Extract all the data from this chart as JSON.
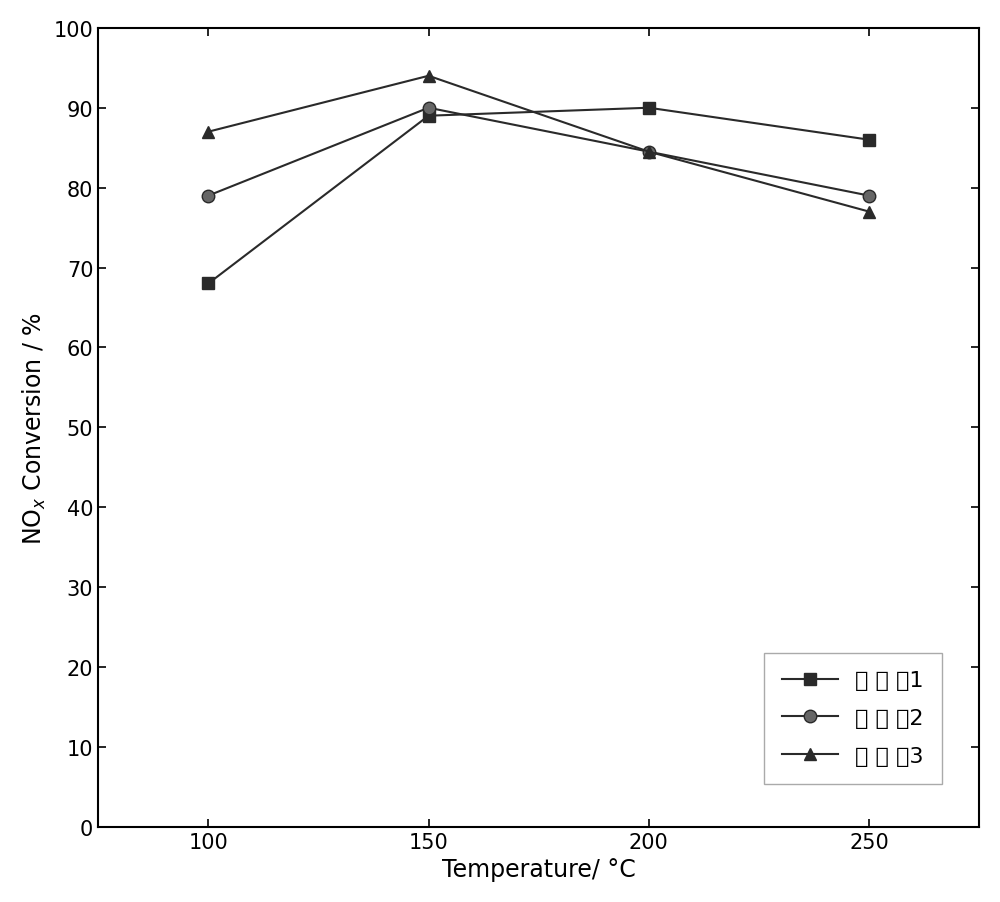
{
  "x": [
    100,
    150,
    200,
    250
  ],
  "series1_y": [
    68,
    89,
    90,
    86
  ],
  "series2_y": [
    79,
    90,
    84.5,
    79
  ],
  "series3_y": [
    87,
    94,
    84.5,
    77
  ],
  "series1_label": "实施例1",
  "series2_label": "实施例2",
  "series3_label": "实施例3",
  "xlabel": "Temperature/ °C",
  "ylabel": "NO$_x$ Conversion / %",
  "xlim": [
    75,
    275
  ],
  "ylim": [
    0,
    100
  ],
  "xticks": [
    100,
    150,
    200,
    250
  ],
  "yticks": [
    0,
    10,
    20,
    30,
    40,
    50,
    60,
    70,
    80,
    90,
    100
  ],
  "line_color": "#2a2a2a",
  "marker_color1": "#2a2a2a",
  "marker_color2": "#666666",
  "marker_color3": "#2a2a2a",
  "marker1": "s",
  "marker2": "o",
  "marker3": "^",
  "marker_size": 9,
  "line_width": 1.5,
  "legend_fontsize": 16,
  "axis_label_fontsize": 17,
  "tick_fontsize": 15,
  "background_color": "#ffffff"
}
